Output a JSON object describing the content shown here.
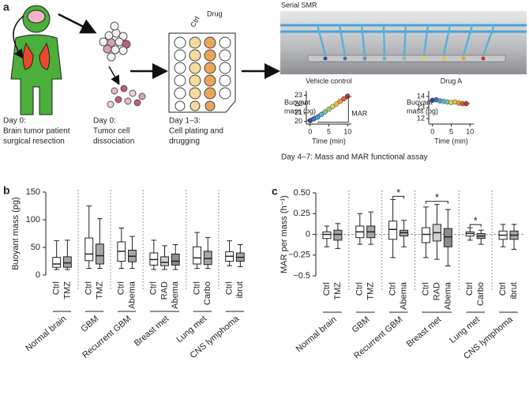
{
  "panel_a": {
    "label": "a",
    "steps": [
      {
        "lines": [
          "Day 0:",
          "Brain tumor patient",
          "surgical resection"
        ]
      },
      {
        "lines": [
          "Day 0:",
          "Tumor cell",
          "dissociation"
        ]
      },
      {
        "lines": [
          "Day 1–3:",
          "Cell plating and",
          "drugging"
        ]
      }
    ],
    "plate_headers": [
      "Ctrl",
      "Drug"
    ],
    "device_title": "Serial SMR",
    "assay_caption": "Day 4–7: Mass and MAR functional assay"
  },
  "chart_data": [
    {
      "type": "scatter",
      "title": "Vehicle control",
      "ylabel": [
        "Buoyant",
        "mass (pg)"
      ],
      "xlabel": "Time (min)",
      "annotation": "MAR",
      "x": [
        0,
        1,
        2,
        3,
        4,
        5,
        6,
        7,
        8,
        9,
        10
      ],
      "values": [
        20.1,
        20.3,
        20.5,
        20.8,
        21.1,
        21.4,
        21.7,
        22.0,
        22.3,
        22.6,
        22.9
      ],
      "point_colors": [
        "#2b4aa8",
        "#3b6fc4",
        "#4a9ad4",
        "#5cb8c8",
        "#7cc49a",
        "#a8cf6a",
        "#d4d455",
        "#f0c040",
        "#f09a38",
        "#e0603a",
        "#c43030"
      ],
      "xlim": [
        -1,
        11
      ],
      "xticks": [
        0,
        5,
        10
      ],
      "ylim": [
        19.7,
        23.5
      ],
      "yticks": [
        20,
        21,
        22,
        23
      ]
    },
    {
      "type": "scatter",
      "title": "Drug A",
      "ylabel": [
        "Buoyant",
        "mass (pg)"
      ],
      "xlabel": "Time (min)",
      "x": [
        0,
        1,
        2,
        3,
        4,
        5,
        6,
        7,
        8,
        9
      ],
      "values": [
        13.65,
        13.7,
        13.6,
        13.55,
        13.5,
        13.45,
        13.5,
        13.4,
        13.35,
        13.35
      ],
      "point_colors": [
        "#2b4aa8",
        "#3b6fc4",
        "#4a9ad4",
        "#5cb8c8",
        "#7cc49a",
        "#d4d455",
        "#f0c040",
        "#f09a38",
        "#e0603a",
        "#c43030"
      ],
      "xlim": [
        -1,
        11
      ],
      "xticks": [
        0,
        5,
        10
      ],
      "ylim": [
        11.5,
        14.5
      ],
      "yticks": [
        12,
        13,
        14
      ]
    },
    {
      "type": "box",
      "panel_label": "b",
      "ylabel": "Buoyant mass (pg)",
      "ylim": [
        0,
        150
      ],
      "yticks": [
        0,
        50,
        100,
        150
      ],
      "groups": [
        {
          "name": "Normal brain",
          "boxes": [
            {
              "label": "Ctrl",
              "color": "#ffffff",
              "whisker_low": 10,
              "q1": 14,
              "median": 20,
              "q3": 32,
              "whisker_high": 62
            },
            {
              "label": "TMZ",
              "color": "#a6a6a6",
              "whisker_low": 10,
              "q1": 14,
              "median": 22,
              "q3": 33,
              "whisker_high": 63
            }
          ]
        },
        {
          "name": "GBM",
          "boxes": [
            {
              "label": "Ctrl",
              "color": "#ffffff",
              "whisker_low": 12,
              "q1": 26,
              "median": 38,
              "q3": 67,
              "whisker_high": 125
            },
            {
              "label": "TMZ",
              "color": "#a6a6a6",
              "whisker_low": 12,
              "q1": 20,
              "median": 35,
              "q3": 56,
              "whisker_high": 102
            }
          ]
        },
        {
          "name": "Recurrent GBM",
          "boxes": [
            {
              "label": "Ctrl",
              "color": "#ffffff",
              "whisker_low": 12,
              "q1": 25,
              "median": 43,
              "q3": 60,
              "whisker_high": 85
            },
            {
              "label": "Abema",
              "color": "#a6a6a6",
              "whisker_low": 12,
              "q1": 24,
              "median": 34,
              "q3": 45,
              "whisker_high": 70
            }
          ]
        },
        {
          "name": "Breast met",
          "boxes": [
            {
              "label": "Ctrl",
              "color": "#ffffff",
              "whisker_low": 10,
              "q1": 18,
              "median": 28,
              "q3": 40,
              "whisker_high": 63
            },
            {
              "label": "RAD",
              "color": "#d0d0d0",
              "whisker_low": 10,
              "q1": 17,
              "median": 23,
              "q3": 33,
              "whisker_high": 53
            },
            {
              "label": "Abema",
              "color": "#8c8c8c",
              "whisker_low": 10,
              "q1": 18,
              "median": 25,
              "q3": 38,
              "whisker_high": 55
            }
          ]
        },
        {
          "name": "Lung met",
          "boxes": [
            {
              "label": "Ctrl",
              "color": "#ffffff",
              "whisker_low": 12,
              "q1": 20,
              "median": 31,
              "q3": 51,
              "whisker_high": 77
            },
            {
              "label": "Carbo",
              "color": "#a6a6a6",
              "whisker_low": 12,
              "q1": 19,
              "median": 30,
              "q3": 43,
              "whisker_high": 68
            }
          ]
        },
        {
          "name": "CNS lymphoma",
          "boxes": [
            {
              "label": "Ctrl",
              "color": "#ffffff",
              "whisker_low": 17,
              "q1": 25,
              "median": 34,
              "q3": 42,
              "whisker_high": 62
            },
            {
              "label": "ibrut",
              "color": "#a6a6a6",
              "whisker_low": 15,
              "q1": 25,
              "median": 32,
              "q3": 40,
              "whisker_high": 55
            }
          ]
        }
      ]
    },
    {
      "type": "box",
      "panel_label": "c",
      "ylabel": "MAR per mass (h⁻¹)",
      "ylim": [
        -0.5,
        0.5
      ],
      "yticks": [
        {
          "value": -0.5,
          "label": "−0.5"
        },
        {
          "value": -0.25,
          "label": "−0.25"
        },
        0,
        {
          "value": 0.25,
          "label": "0.25"
        },
        {
          "value": 0.5,
          "label": "0.50"
        }
      ],
      "zero_line": true,
      "groups": [
        {
          "name": "Normal brain",
          "boxes": [
            {
              "label": "Ctrl",
              "color": "#ffffff",
              "whisker_low": -0.15,
              "q1": -0.05,
              "median": 0,
              "q3": 0.03,
              "whisker_high": 0.1
            },
            {
              "label": "TMZ",
              "color": "#a6a6a6",
              "whisker_low": -0.17,
              "q1": -0.07,
              "median": 0,
              "q3": 0.05,
              "whisker_high": 0.13
            }
          ]
        },
        {
          "name": "GBM",
          "boxes": [
            {
              "label": "Ctrl",
              "color": "#ffffff",
              "whisker_low": -0.12,
              "q1": -0.04,
              "median": 0.03,
              "q3": 0.1,
              "whisker_high": 0.25
            },
            {
              "label": "TMZ",
              "color": "#a6a6a6",
              "whisker_low": -0.12,
              "q1": -0.04,
              "median": 0.03,
              "q3": 0.1,
              "whisker_high": 0.27
            }
          ]
        },
        {
          "name": "Recurrent GBM",
          "significance": "*",
          "boxes": [
            {
              "label": "Ctrl",
              "color": "#ffffff",
              "whisker_low": -0.28,
              "q1": -0.06,
              "median": 0.06,
              "q3": 0.16,
              "whisker_high": 0.42
            },
            {
              "label": "Abema",
              "color": "#a6a6a6",
              "whisker_low": -0.15,
              "q1": -0.02,
              "median": 0.02,
              "q3": 0.05,
              "whisker_high": 0.17
            }
          ]
        },
        {
          "name": "Breast met",
          "significance": "*",
          "boxes": [
            {
              "label": "Ctrl",
              "color": "#ffffff",
              "whisker_low": -0.28,
              "q1": -0.1,
              "median": 0,
              "q3": 0.08,
              "whisker_high": 0.33
            },
            {
              "label": "RAD",
              "color": "#d0d0d0",
              "whisker_low": -0.3,
              "q1": -0.08,
              "median": 0.02,
              "q3": 0.12,
              "whisker_high": 0.36
            },
            {
              "label": "Abema",
              "color": "#8c8c8c",
              "whisker_low": -0.38,
              "q1": -0.15,
              "median": -0.03,
              "q3": 0.07,
              "whisker_high": 0.3
            }
          ]
        },
        {
          "name": "Lung met",
          "significance": "*",
          "boxes": [
            {
              "label": "Ctrl",
              "color": "#ffffff",
              "whisker_low": -0.07,
              "q1": -0.02,
              "median": 0.01,
              "q3": 0.03,
              "whisker_high": 0.08
            },
            {
              "label": "Carbo",
              "color": "#a6a6a6",
              "whisker_low": -0.12,
              "q1": -0.05,
              "median": -0.02,
              "q3": 0.01,
              "whisker_high": 0.05
            }
          ]
        },
        {
          "name": "CNS lymphoma",
          "boxes": [
            {
              "label": "Ctrl",
              "color": "#ffffff",
              "whisker_low": -0.15,
              "q1": -0.06,
              "median": -0.01,
              "q3": 0.04,
              "whisker_high": 0.12
            },
            {
              "label": "ibrut",
              "color": "#a6a6a6",
              "whisker_low": -0.18,
              "q1": -0.06,
              "median": -0.01,
              "q3": 0.04,
              "whisker_high": 0.12
            }
          ]
        }
      ]
    }
  ]
}
